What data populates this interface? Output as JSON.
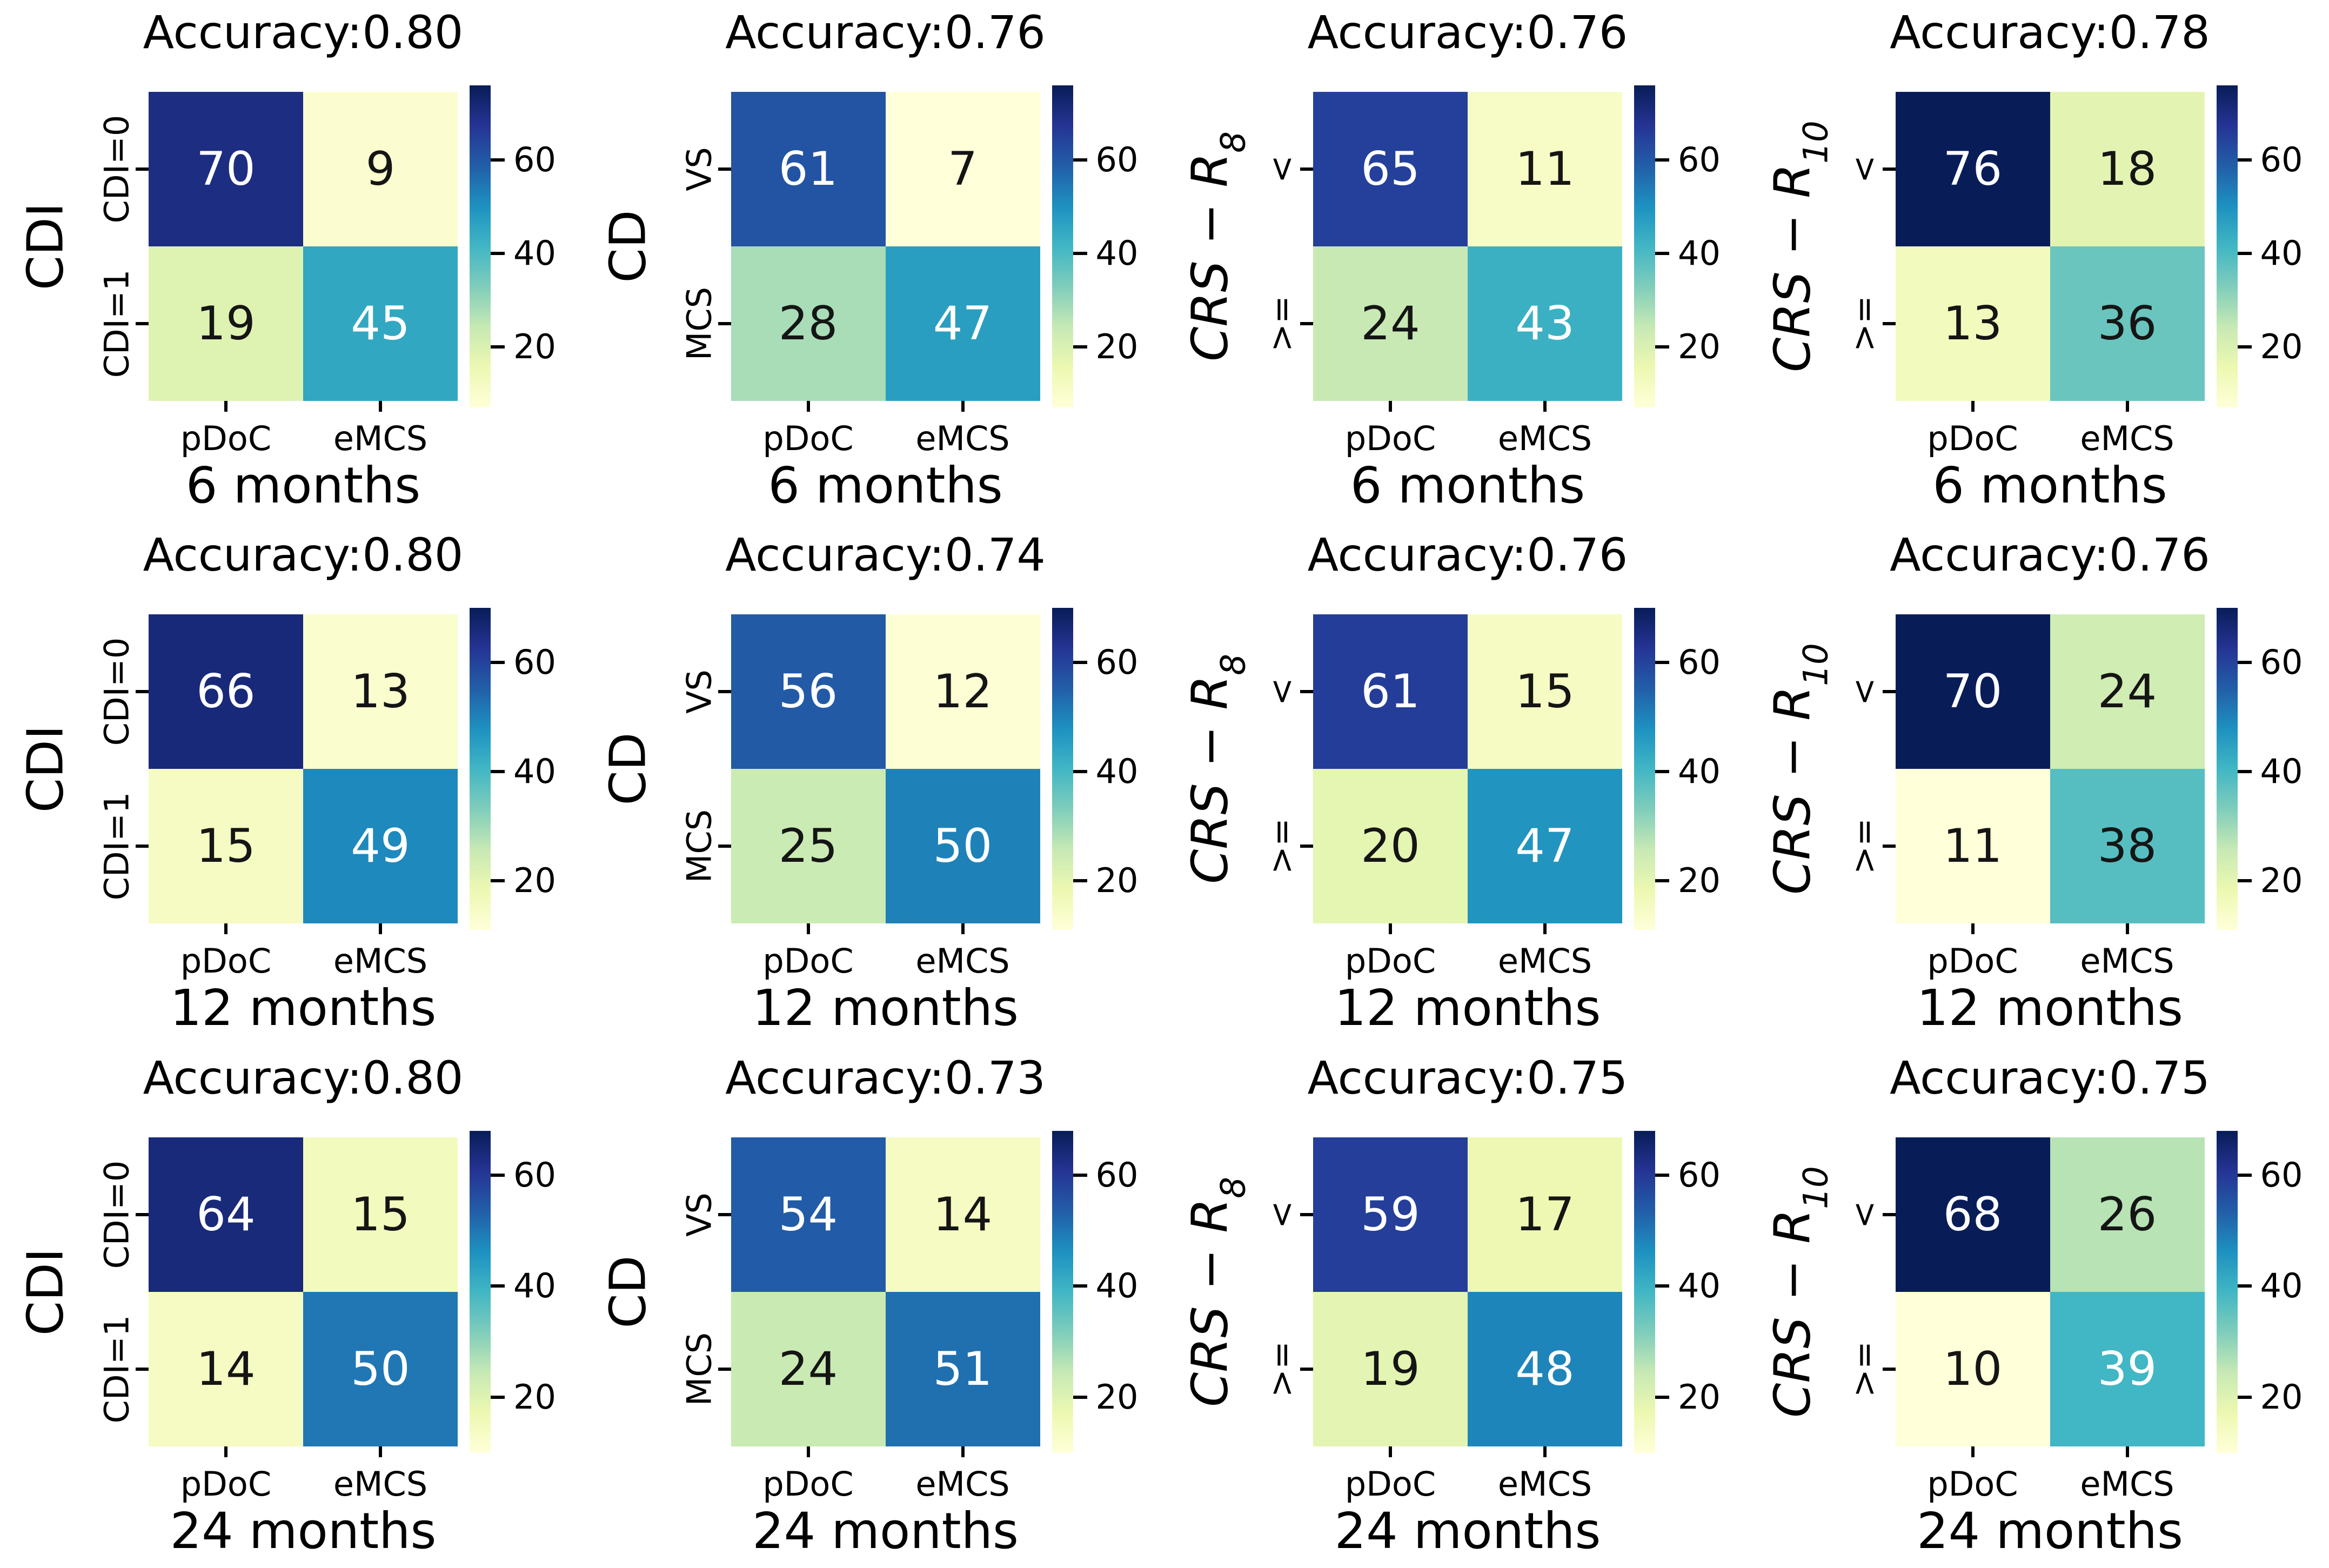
{
  "figure": {
    "background": "#ffffff",
    "text_color": "#000000",
    "colormap_name": "YlGnBu",
    "colormap_stops": [
      "#ffffd9",
      "#edf8b1",
      "#c7e9b4",
      "#7fcdbb",
      "#41b6c4",
      "#1d91c0",
      "#225ea8",
      "#253494",
      "#081d58"
    ],
    "annotation_dark_text": "#151515",
    "annotation_light_text": "#ffffff",
    "luminance_threshold": 0.408
  },
  "chart_data": [
    {
      "type": "heatmap",
      "title": "Accuracy:0.80",
      "accuracy": "0.80",
      "y_axis_label": "CDI",
      "y_axis_sub": "",
      "y_axis_italic": false,
      "y_tick_labels": [
        "CDI=0",
        "CDI=1"
      ],
      "x_tick_labels": [
        "pDoC",
        "eMCS"
      ],
      "xlabel": "6 months",
      "values": [
        [
          70,
          9
        ],
        [
          19,
          45
        ]
      ],
      "vmin": 7,
      "vmax": 76,
      "colorbar_ticks": [
        60,
        40,
        20
      ],
      "colormap": "YlGnBu",
      "legend_position": "right",
      "grid": false
    },
    {
      "type": "heatmap",
      "title": "Accuracy:0.76",
      "accuracy": "0.76",
      "y_axis_label": "CD",
      "y_axis_sub": "",
      "y_axis_italic": false,
      "y_tick_labels": [
        "VS",
        "MCS"
      ],
      "x_tick_labels": [
        "pDoC",
        "eMCS"
      ],
      "xlabel": "6 months",
      "values": [
        [
          61,
          7
        ],
        [
          28,
          47
        ]
      ],
      "vmin": 7,
      "vmax": 76,
      "colorbar_ticks": [
        60,
        40,
        20
      ],
      "colormap": "YlGnBu",
      "legend_position": "right",
      "grid": false
    },
    {
      "type": "heatmap",
      "title": "Accuracy:0.76",
      "accuracy": "0.76",
      "y_axis_label": "CRS − R",
      "y_axis_sub": "8",
      "y_axis_italic": true,
      "y_tick_labels": [
        "<",
        ">="
      ],
      "x_tick_labels": [
        "pDoC",
        "eMCS"
      ],
      "xlabel": "6 months",
      "values": [
        [
          65,
          11
        ],
        [
          24,
          43
        ]
      ],
      "vmin": 7,
      "vmax": 76,
      "colorbar_ticks": [
        60,
        40,
        20
      ],
      "colormap": "YlGnBu",
      "legend_position": "right",
      "grid": false
    },
    {
      "type": "heatmap",
      "title": "Accuracy:0.78",
      "accuracy": "0.78",
      "y_axis_label": "CRS − R",
      "y_axis_sub": "10",
      "y_axis_italic": true,
      "y_tick_labels": [
        "<",
        ">="
      ],
      "x_tick_labels": [
        "pDoC",
        "eMCS"
      ],
      "xlabel": "6 months",
      "values": [
        [
          76,
          18
        ],
        [
          13,
          36
        ]
      ],
      "vmin": 7,
      "vmax": 76,
      "colorbar_ticks": [
        60,
        40,
        20
      ],
      "colormap": "YlGnBu",
      "legend_position": "right",
      "grid": false
    },
    {
      "type": "heatmap",
      "title": "Accuracy:0.80",
      "accuracy": "0.80",
      "y_axis_label": "CDI",
      "y_axis_sub": "",
      "y_axis_italic": false,
      "y_tick_labels": [
        "CDI=0",
        "CDI=1"
      ],
      "x_tick_labels": [
        "pDoC",
        "eMCS"
      ],
      "xlabel": "12 months",
      "values": [
        [
          66,
          13
        ],
        [
          15,
          49
        ]
      ],
      "vmin": 11,
      "vmax": 70,
      "colorbar_ticks": [
        60,
        40,
        20
      ],
      "colormap": "YlGnBu",
      "legend_position": "right",
      "grid": false
    },
    {
      "type": "heatmap",
      "title": "Accuracy:0.74",
      "accuracy": "0.74",
      "y_axis_label": "CD",
      "y_axis_sub": "",
      "y_axis_italic": false,
      "y_tick_labels": [
        "VS",
        "MCS"
      ],
      "x_tick_labels": [
        "pDoC",
        "eMCS"
      ],
      "xlabel": "12 months",
      "values": [
        [
          56,
          12
        ],
        [
          25,
          50
        ]
      ],
      "vmin": 11,
      "vmax": 70,
      "colorbar_ticks": [
        60,
        40,
        20
      ],
      "colormap": "YlGnBu",
      "legend_position": "right",
      "grid": false
    },
    {
      "type": "heatmap",
      "title": "Accuracy:0.76",
      "accuracy": "0.76",
      "y_axis_label": "CRS − R",
      "y_axis_sub": "8",
      "y_axis_italic": true,
      "y_tick_labels": [
        "<",
        ">="
      ],
      "x_tick_labels": [
        "pDoC",
        "eMCS"
      ],
      "xlabel": "12 months",
      "values": [
        [
          61,
          15
        ],
        [
          20,
          47
        ]
      ],
      "vmin": 11,
      "vmax": 70,
      "colorbar_ticks": [
        60,
        40,
        20
      ],
      "colormap": "YlGnBu",
      "legend_position": "right",
      "grid": false
    },
    {
      "type": "heatmap",
      "title": "Accuracy:0.76",
      "accuracy": "0.76",
      "y_axis_label": "CRS − R",
      "y_axis_sub": "10",
      "y_axis_italic": true,
      "y_tick_labels": [
        "<",
        ">="
      ],
      "x_tick_labels": [
        "pDoC",
        "eMCS"
      ],
      "xlabel": "12 months",
      "values": [
        [
          70,
          24
        ],
        [
          11,
          38
        ]
      ],
      "vmin": 11,
      "vmax": 70,
      "colorbar_ticks": [
        60,
        40,
        20
      ],
      "colormap": "YlGnBu",
      "legend_position": "right",
      "grid": false
    },
    {
      "type": "heatmap",
      "title": "Accuracy:0.80",
      "accuracy": "0.80",
      "y_axis_label": "CDI",
      "y_axis_sub": "",
      "y_axis_italic": false,
      "y_tick_labels": [
        "CDI=0",
        "CDI=1"
      ],
      "x_tick_labels": [
        "pDoC",
        "eMCS"
      ],
      "xlabel": "24 months",
      "values": [
        [
          64,
          15
        ],
        [
          14,
          50
        ]
      ],
      "vmin": 10,
      "vmax": 68,
      "colorbar_ticks": [
        60,
        40,
        20
      ],
      "colormap": "YlGnBu",
      "legend_position": "right",
      "grid": false
    },
    {
      "type": "heatmap",
      "title": "Accuracy:0.73",
      "accuracy": "0.73",
      "y_axis_label": "CD",
      "y_axis_sub": "",
      "y_axis_italic": false,
      "y_tick_labels": [
        "VS",
        "MCS"
      ],
      "x_tick_labels": [
        "pDoC",
        "eMCS"
      ],
      "xlabel": "24 months",
      "values": [
        [
          54,
          14
        ],
        [
          24,
          51
        ]
      ],
      "vmin": 10,
      "vmax": 68,
      "colorbar_ticks": [
        60,
        40,
        20
      ],
      "colormap": "YlGnBu",
      "legend_position": "right",
      "grid": false
    },
    {
      "type": "heatmap",
      "title": "Accuracy:0.75",
      "accuracy": "0.75",
      "y_axis_label": "CRS − R",
      "y_axis_sub": "8",
      "y_axis_italic": true,
      "y_tick_labels": [
        "<",
        ">="
      ],
      "x_tick_labels": [
        "pDoC",
        "eMCS"
      ],
      "xlabel": "24 months",
      "values": [
        [
          59,
          17
        ],
        [
          19,
          48
        ]
      ],
      "vmin": 10,
      "vmax": 68,
      "colorbar_ticks": [
        60,
        40,
        20
      ],
      "colormap": "YlGnBu",
      "legend_position": "right",
      "grid": false
    },
    {
      "type": "heatmap",
      "title": "Accuracy:0.75",
      "accuracy": "0.75",
      "y_axis_label": "CRS − R",
      "y_axis_sub": "10",
      "y_axis_italic": true,
      "y_tick_labels": [
        "<",
        ">="
      ],
      "x_tick_labels": [
        "pDoC",
        "eMCS"
      ],
      "xlabel": "24 months",
      "values": [
        [
          68,
          26
        ],
        [
          10,
          39
        ]
      ],
      "vmin": 10,
      "vmax": 68,
      "colorbar_ticks": [
        60,
        40,
        20
      ],
      "colormap": "YlGnBu",
      "legend_position": "right",
      "grid": false
    }
  ]
}
